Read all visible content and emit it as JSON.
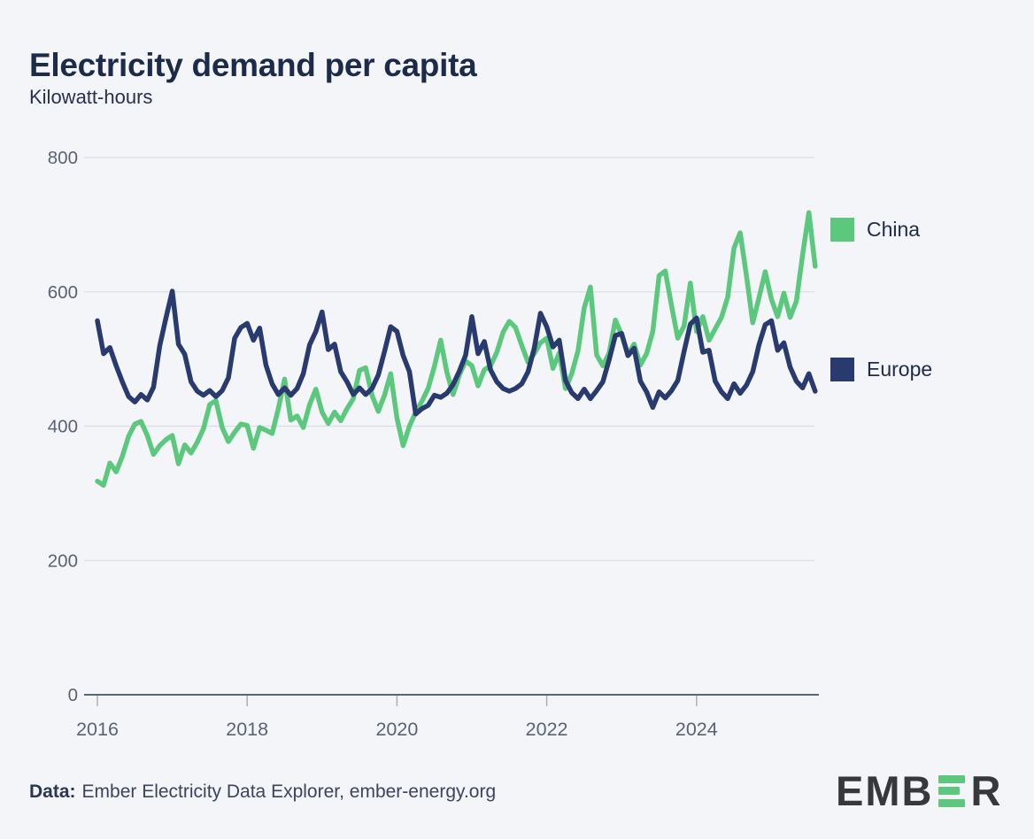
{
  "header": {
    "title": "Electricity demand per capita",
    "subtitle": "Kilowatt-hours"
  },
  "footer": {
    "label": "Data:",
    "text": "Ember Electricity Data Explorer, ember-energy.org"
  },
  "logo": {
    "left": "EMB",
    "right": "R"
  },
  "colors": {
    "background": "#f3f5f9",
    "title_text": "#1d2b4a",
    "axis_text": "#5a6373",
    "gridline": "#d9dde3",
    "axis_line": "#5c6573",
    "china_green": "#5cc87d",
    "europe_navy": "#293a6e",
    "logo_dark": "#36383c",
    "logo_green": "#5cc87d"
  },
  "chart_data": {
    "type": "line",
    "title": "Electricity demand per capita",
    "unit": "Kilowatt-hours",
    "interval": "monthly",
    "x_start": "2016-01",
    "x_end": "2025-08",
    "xticks": [
      2016,
      2018,
      2020,
      2022,
      2024
    ],
    "yticks": [
      0,
      200,
      400,
      600,
      800
    ],
    "ylim": [
      0,
      800
    ],
    "grid": "horizontal",
    "legend_position": "right",
    "series": [
      {
        "name": "China",
        "color": "#5cc87d",
        "values": [
          318,
          312,
          345,
          332,
          355,
          385,
          403,
          407,
          386,
          358,
          371,
          380,
          386,
          344,
          372,
          360,
          376,
          396,
          432,
          438,
          398,
          377,
          391,
          403,
          401,
          367,
          398,
          394,
          389,
          426,
          470,
          409,
          415,
          398,
          432,
          455,
          421,
          404,
          421,
          408,
          426,
          441,
          483,
          487,
          446,
          422,
          446,
          478,
          412,
          371,
          400,
          421,
          437,
          456,
          489,
          528,
          480,
          447,
          476,
          497,
          490,
          460,
          484,
          490,
          510,
          540,
          556,
          547,
          520,
          495,
          508,
          524,
          531,
          486,
          509,
          456,
          478,
          512,
          576,
          607,
          506,
          490,
          509,
          558,
          536,
          507,
          522,
          491,
          508,
          541,
          624,
          631,
          579,
          531,
          549,
          613,
          541,
          563,
          528,
          545,
          562,
          592,
          665,
          688,
          624,
          554,
          591,
          630,
          589,
          563,
          598,
          562,
          586,
          655,
          718,
          638
        ]
      },
      {
        "name": "Europe",
        "color": "#293a6e",
        "values": [
          557,
          508,
          517,
          490,
          466,
          444,
          436,
          447,
          439,
          458,
          520,
          562,
          601,
          522,
          507,
          466,
          452,
          446,
          453,
          444,
          453,
          472,
          531,
          547,
          553,
          528,
          546,
          491,
          463,
          447,
          457,
          446,
          456,
          478,
          521,
          541,
          570,
          514,
          522,
          481,
          466,
          447,
          457,
          447,
          456,
          476,
          511,
          548,
          541,
          505,
          481,
          418,
          426,
          431,
          446,
          443,
          449,
          462,
          482,
          506,
          563,
          508,
          526,
          484,
          466,
          456,
          452,
          456,
          463,
          481,
          516,
          568,
          548,
          518,
          528,
          468,
          450,
          441,
          455,
          441,
          453,
          466,
          499,
          535,
          538,
          505,
          516,
          467,
          451,
          428,
          451,
          442,
          453,
          468,
          511,
          552,
          561,
          510,
          513,
          467,
          451,
          441,
          463,
          449,
          461,
          481,
          521,
          551,
          557,
          513,
          524,
          488,
          467,
          457,
          478,
          452
        ]
      }
    ]
  }
}
